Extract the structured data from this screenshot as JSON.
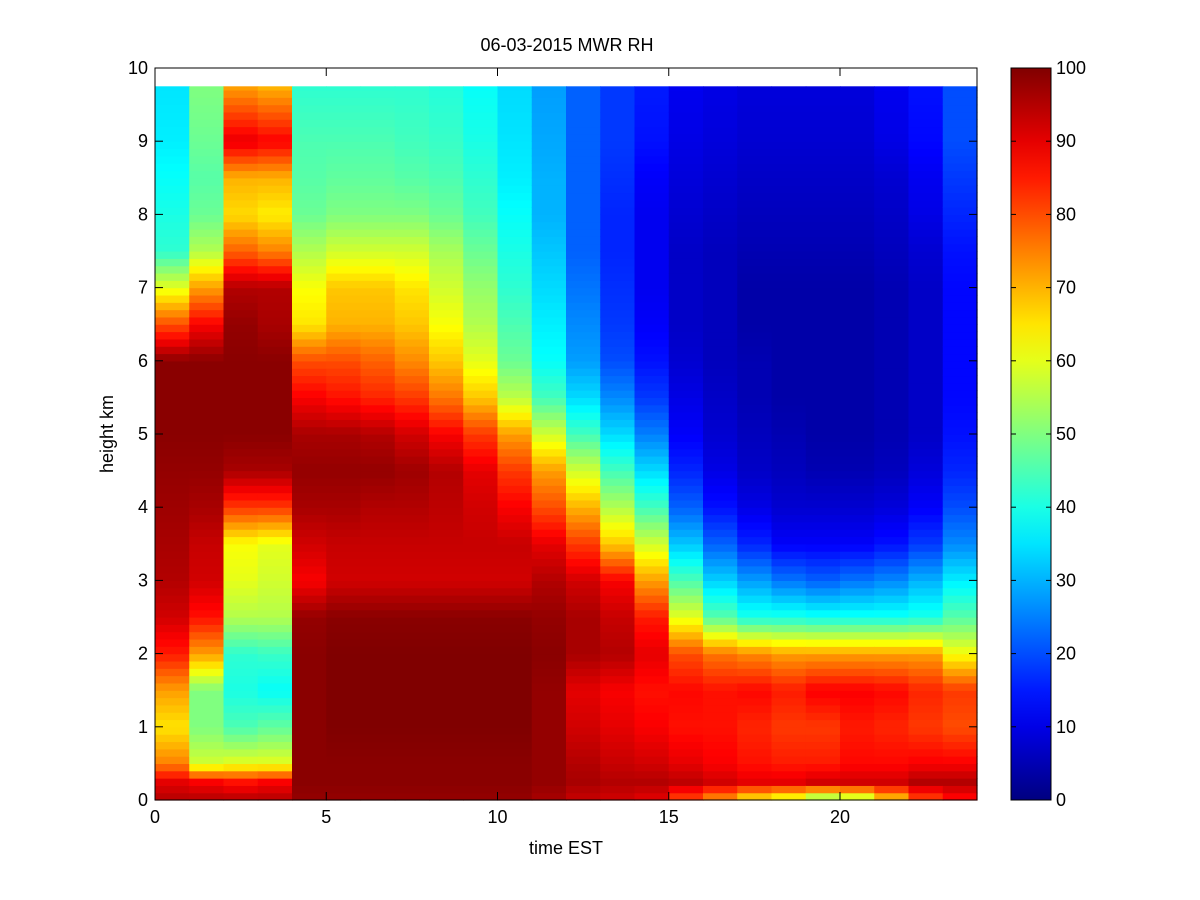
{
  "chart_data": {
    "type": "heatmap",
    "title": "06-03-2015 MWR RH",
    "xlabel": "time EST",
    "ylabel": "height km",
    "xlim": [
      0,
      24
    ],
    "ylim": [
      0,
      10
    ],
    "xticks": [
      0,
      5,
      10,
      15,
      20
    ],
    "yticks": [
      0,
      1,
      2,
      3,
      4,
      5,
      6,
      7,
      8,
      9,
      10
    ],
    "colorbar": {
      "ticks": [
        0,
        10,
        20,
        30,
        40,
        50,
        60,
        70,
        80,
        90,
        100
      ],
      "min": 0,
      "max": 100,
      "colormap": "jet"
    },
    "grid": false,
    "time_hours": [
      0,
      1,
      2,
      3,
      4,
      5,
      6,
      7,
      8,
      9,
      10,
      11,
      12,
      13,
      14,
      15,
      16,
      17,
      18,
      19,
      20,
      21,
      22,
      23
    ],
    "height_km": [
      0,
      0.25,
      0.5,
      1,
      1.5,
      2,
      2.5,
      3,
      3.5,
      4,
      4.5,
      5,
      5.5,
      6,
      6.5,
      7,
      7.5,
      8,
      8.5,
      9,
      9.75
    ],
    "rh_percent": [
      [
        95,
        95,
        95,
        95,
        98,
        98,
        98,
        98,
        98,
        98,
        98,
        96,
        93,
        92,
        90,
        80,
        72,
        63,
        58,
        48,
        52,
        66,
        80,
        86
      ],
      [
        90,
        88,
        86,
        88,
        99,
        99,
        99,
        99,
        99,
        99,
        99,
        98,
        96,
        95,
        95,
        94,
        92,
        90,
        90,
        92,
        92,
        92,
        95,
        95
      ],
      [
        75,
        58,
        60,
        60,
        99,
        99,
        99,
        99,
        99,
        99,
        99,
        98,
        95,
        93,
        92,
        90,
        88,
        86,
        85,
        85,
        87,
        87,
        88,
        88
      ],
      [
        65,
        50,
        45,
        47,
        99,
        100,
        100,
        100,
        100,
        100,
        100,
        98,
        92,
        90,
        88,
        86,
        86,
        84,
        82,
        82,
        85,
        84,
        82,
        80
      ],
      [
        72,
        50,
        40,
        38,
        99,
        100,
        100,
        100,
        100,
        100,
        100,
        98,
        90,
        88,
        86,
        87,
        86,
        87,
        85,
        88,
        88,
        87,
        84,
        82
      ],
      [
        85,
        72,
        42,
        43,
        99,
        100,
        100,
        100,
        100,
        100,
        100,
        99,
        96,
        95,
        90,
        80,
        76,
        74,
        72,
        72,
        72,
        72,
        72,
        62
      ],
      [
        92,
        86,
        55,
        55,
        98,
        99,
        99,
        99,
        99,
        99,
        99,
        98,
        96,
        93,
        85,
        60,
        46,
        40,
        40,
        39,
        39,
        39,
        40,
        46
      ],
      [
        95,
        92,
        60,
        58,
        88,
        92,
        92,
        92,
        92,
        92,
        92,
        95,
        92,
        88,
        72,
        45,
        33,
        28,
        24,
        22,
        24,
        26,
        30,
        36
      ],
      [
        96,
        93,
        62,
        60,
        92,
        93,
        93,
        93,
        93,
        93,
        93,
        90,
        82,
        68,
        58,
        32,
        22,
        16,
        12,
        12,
        12,
        14,
        18,
        26
      ],
      [
        97,
        96,
        82,
        82,
        96,
        96,
        95,
        95,
        94,
        92,
        88,
        80,
        70,
        55,
        44,
        22,
        14,
        10,
        8,
        8,
        8,
        9,
        12,
        20
      ],
      [
        98,
        98,
        96,
        96,
        98,
        98,
        98,
        97,
        95,
        90,
        82,
        72,
        58,
        44,
        34,
        16,
        10,
        7,
        6,
        5,
        5,
        6,
        9,
        16
      ],
      [
        99,
        99,
        99,
        99,
        96,
        96,
        95,
        92,
        88,
        82,
        72,
        58,
        44,
        34,
        25,
        12,
        8,
        6,
        5,
        4,
        4,
        5,
        7,
        14
      ],
      [
        99,
        99,
        99,
        99,
        88,
        86,
        84,
        82,
        76,
        68,
        56,
        44,
        34,
        26,
        18,
        10,
        7,
        5,
        4,
        4,
        4,
        5,
        7,
        13
      ],
      [
        99,
        99,
        99,
        99,
        80,
        80,
        78,
        74,
        68,
        60,
        48,
        38,
        28,
        20,
        14,
        8,
        6,
        5,
        4,
        4,
        4,
        5,
        7,
        13
      ],
      [
        80,
        88,
        98,
        96,
        65,
        70,
        70,
        68,
        62,
        55,
        45,
        36,
        26,
        18,
        12,
        7,
        6,
        4,
        4,
        4,
        4,
        5,
        7,
        13
      ],
      [
        60,
        72,
        95,
        95,
        62,
        68,
        68,
        65,
        58,
        52,
        42,
        34,
        24,
        17,
        11,
        7,
        6,
        4,
        4,
        4,
        4,
        5,
        7,
        13
      ],
      [
        42,
        55,
        78,
        75,
        55,
        58,
        58,
        58,
        54,
        48,
        40,
        32,
        22,
        16,
        11,
        7,
        6,
        5,
        5,
        5,
        5,
        6,
        8,
        14
      ],
      [
        40,
        48,
        66,
        64,
        48,
        50,
        50,
        50,
        48,
        44,
        38,
        30,
        22,
        16,
        11,
        8,
        7,
        6,
        6,
        6,
        6,
        7,
        10,
        16
      ],
      [
        38,
        46,
        70,
        70,
        46,
        47,
        47,
        46,
        45,
        42,
        36,
        30,
        22,
        17,
        12,
        9,
        8,
        7,
        7,
        7,
        7,
        8,
        11,
        18
      ],
      [
        36,
        48,
        90,
        88,
        45,
        45,
        45,
        44,
        43,
        40,
        35,
        29,
        22,
        18,
        14,
        10,
        9,
        8,
        8,
        8,
        8,
        10,
        13,
        20
      ],
      [
        35,
        50,
        72,
        70,
        42,
        42,
        42,
        42,
        41,
        38,
        34,
        28,
        22,
        18,
        15,
        11,
        10,
        9,
        9,
        9,
        9,
        11,
        14,
        20
      ]
    ]
  }
}
